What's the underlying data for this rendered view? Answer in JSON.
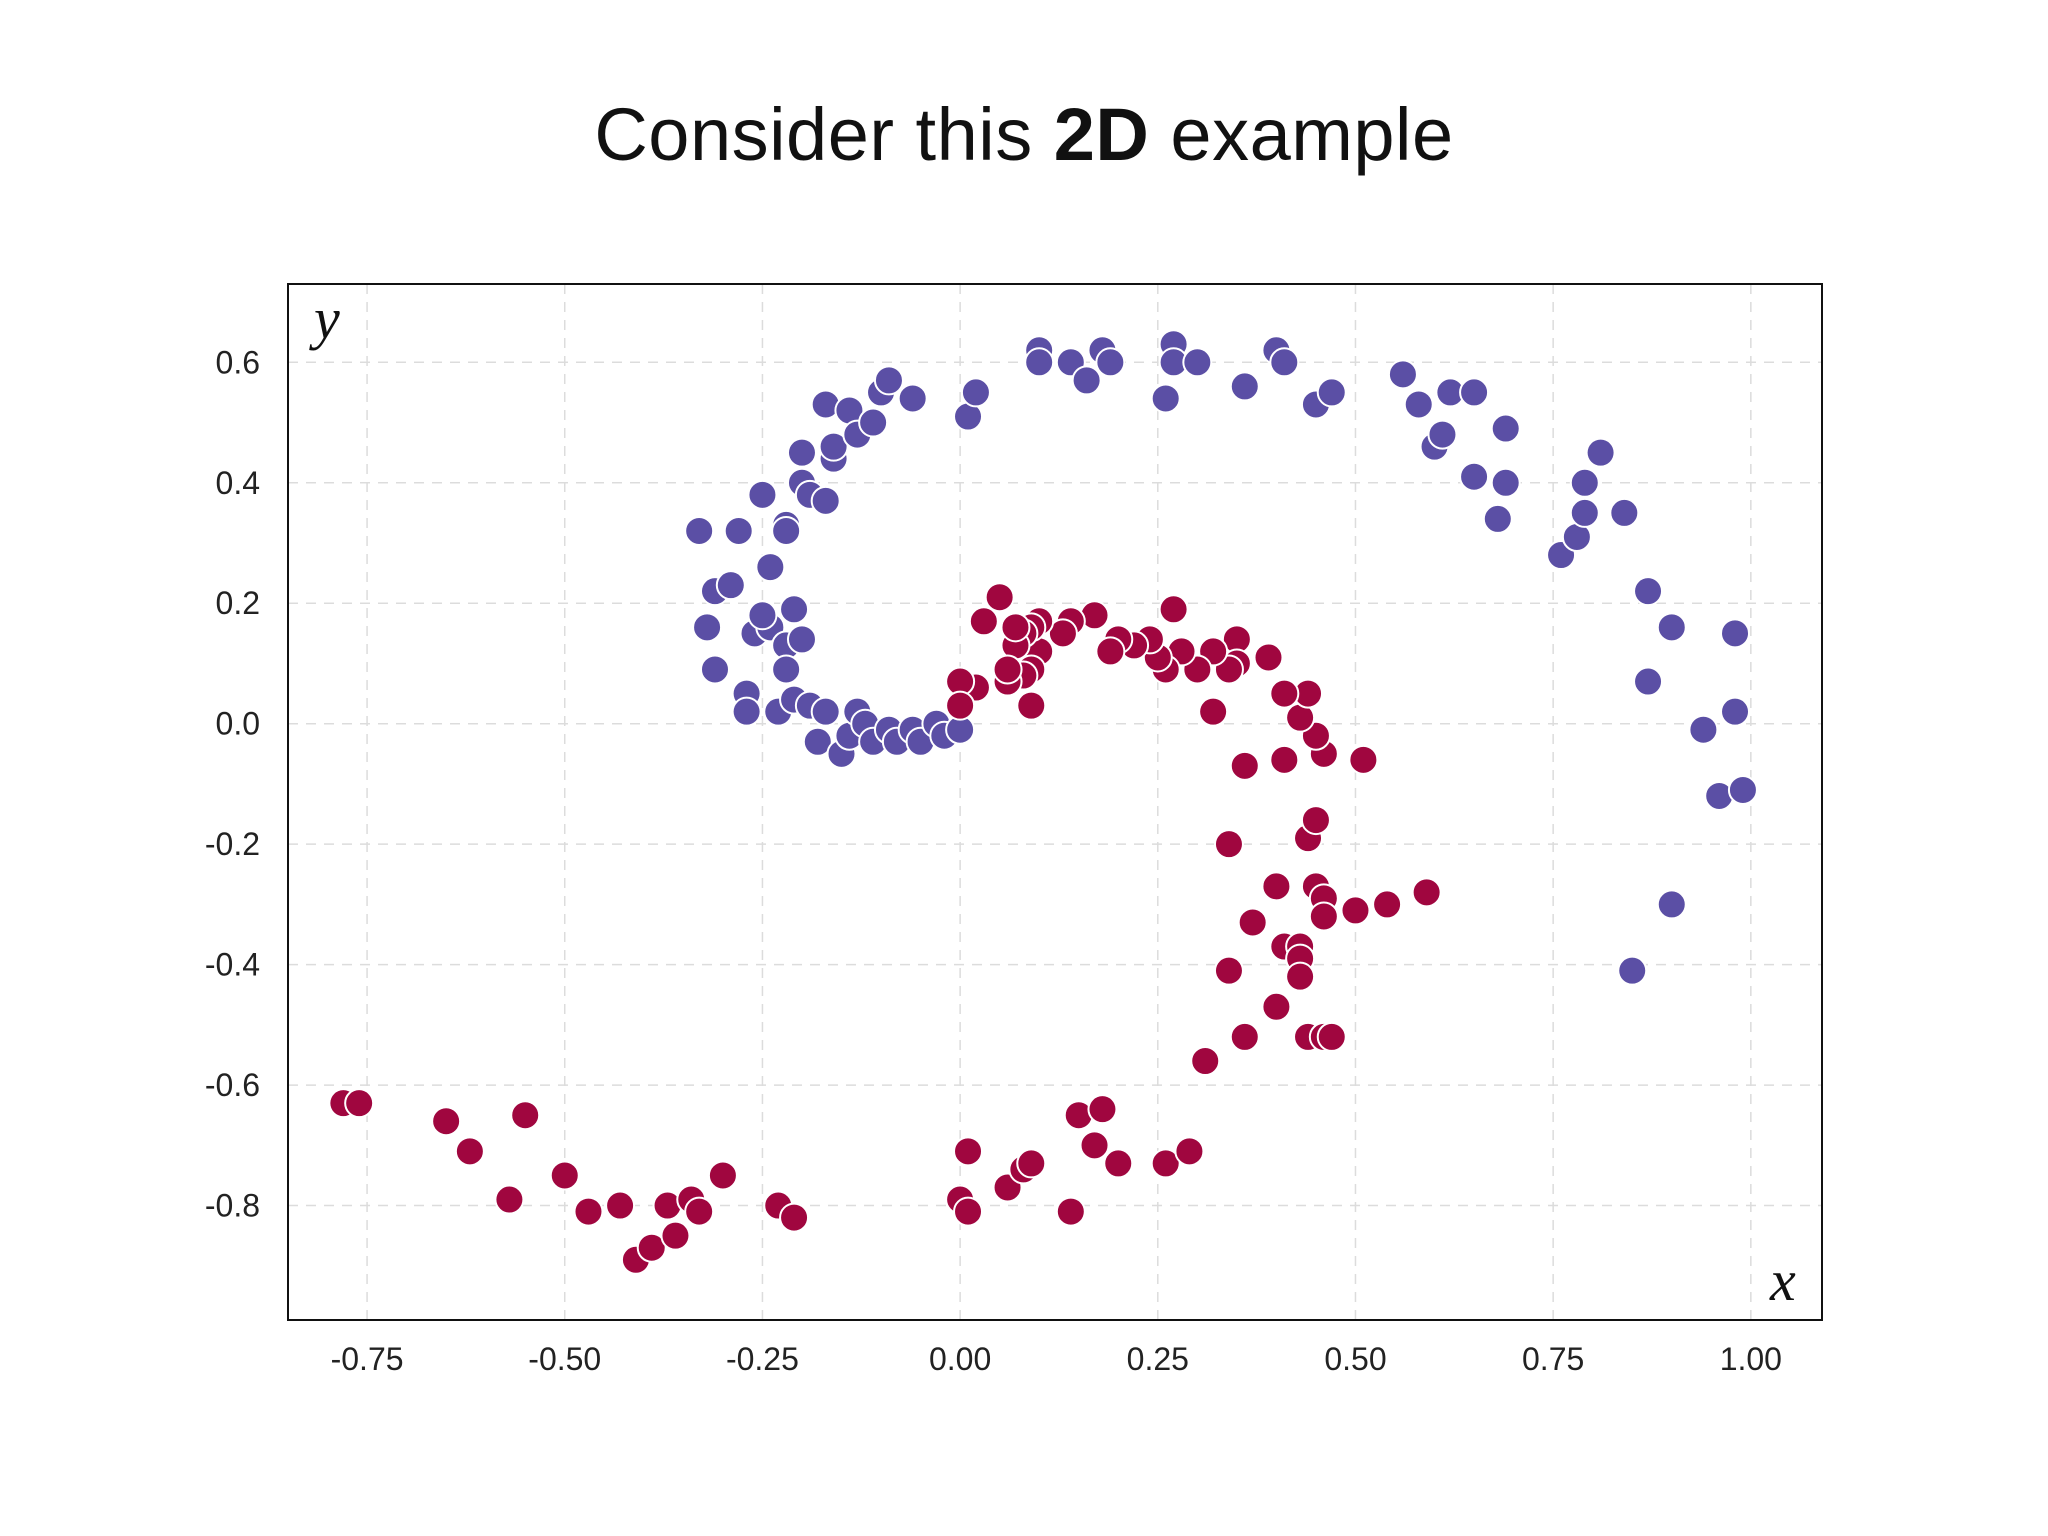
{
  "title": {
    "pre": "Consider this ",
    "bold": "2D",
    "post": " example"
  },
  "colors": {
    "class_a": "#5b4fa5",
    "class_b": "#a0063f",
    "grid": "#dcdcdc",
    "frame": "#111111"
  },
  "chart_data": {
    "type": "scatter",
    "xlabel": "x",
    "ylabel": "y",
    "xlim": [
      -0.85,
      1.09
    ],
    "ylim": [
      -0.99,
      0.73
    ],
    "grid": true,
    "xticks": [
      -0.75,
      -0.5,
      -0.25,
      0.0,
      0.25,
      0.5,
      0.75,
      1.0
    ],
    "xtick_labels": [
      "-0.75",
      "-0.50",
      "-0.25",
      "0.00",
      "0.25",
      "0.50",
      "0.75",
      "1.00"
    ],
    "yticks": [
      0.6,
      0.4,
      0.2,
      0.0,
      -0.2,
      -0.4,
      -0.6,
      -0.8
    ],
    "ytick_labels": [
      "0.6",
      "0.4",
      "0.2",
      "0.0",
      "-0.2",
      "-0.4",
      "-0.6",
      "-0.8"
    ],
    "series": [
      {
        "color": "#5b4fa5",
        "points": [
          [
            -0.33,
            0.32
          ],
          [
            -0.28,
            0.32
          ],
          [
            -0.31,
            0.22
          ],
          [
            -0.29,
            0.23
          ],
          [
            -0.32,
            0.16
          ],
          [
            -0.31,
            0.09
          ],
          [
            -0.27,
            0.05
          ],
          [
            -0.27,
            0.02
          ],
          [
            -0.23,
            0.02
          ],
          [
            -0.26,
            0.15
          ],
          [
            -0.24,
            0.16
          ],
          [
            -0.25,
            0.18
          ],
          [
            -0.21,
            0.19
          ],
          [
            -0.22,
            0.13
          ],
          [
            -0.2,
            0.14
          ],
          [
            -0.22,
            0.09
          ],
          [
            -0.21,
            0.04
          ],
          [
            -0.19,
            0.03
          ],
          [
            -0.18,
            -0.03
          ],
          [
            -0.17,
            0.02
          ],
          [
            -0.15,
            -0.05
          ],
          [
            -0.14,
            -0.02
          ],
          [
            -0.13,
            0.02
          ],
          [
            -0.12,
            0.0
          ],
          [
            -0.11,
            -0.03
          ],
          [
            -0.09,
            -0.01
          ],
          [
            -0.08,
            -0.03
          ],
          [
            -0.06,
            -0.01
          ],
          [
            -0.05,
            -0.03
          ],
          [
            -0.03,
            0.0
          ],
          [
            -0.02,
            -0.02
          ],
          [
            0.0,
            -0.01
          ],
          [
            -0.24,
            0.26
          ],
          [
            -0.22,
            0.33
          ],
          [
            -0.22,
            0.32
          ],
          [
            -0.25,
            0.38
          ],
          [
            -0.2,
            0.4
          ],
          [
            -0.19,
            0.38
          ],
          [
            -0.17,
            0.37
          ],
          [
            -0.2,
            0.45
          ],
          [
            -0.16,
            0.44
          ],
          [
            -0.16,
            0.46
          ],
          [
            -0.17,
            0.53
          ],
          [
            -0.14,
            0.52
          ],
          [
            -0.13,
            0.48
          ],
          [
            -0.11,
            0.5
          ],
          [
            -0.1,
            0.55
          ],
          [
            -0.09,
            0.57
          ],
          [
            -0.06,
            0.54
          ],
          [
            0.01,
            0.51
          ],
          [
            0.02,
            0.55
          ],
          [
            0.1,
            0.62
          ],
          [
            0.1,
            0.6
          ],
          [
            0.14,
            0.6
          ],
          [
            0.16,
            0.57
          ],
          [
            0.18,
            0.62
          ],
          [
            0.19,
            0.6
          ],
          [
            0.27,
            0.63
          ],
          [
            0.27,
            0.6
          ],
          [
            0.3,
            0.6
          ],
          [
            0.26,
            0.54
          ],
          [
            0.36,
            0.56
          ],
          [
            0.4,
            0.62
          ],
          [
            0.41,
            0.6
          ],
          [
            0.45,
            0.53
          ],
          [
            0.47,
            0.55
          ],
          [
            0.56,
            0.58
          ],
          [
            0.58,
            0.53
          ],
          [
            0.6,
            0.46
          ],
          [
            0.61,
            0.48
          ],
          [
            0.62,
            0.55
          ],
          [
            0.65,
            0.55
          ],
          [
            0.65,
            0.41
          ],
          [
            0.68,
            0.34
          ],
          [
            0.69,
            0.49
          ],
          [
            0.69,
            0.4
          ],
          [
            0.76,
            0.28
          ],
          [
            0.78,
            0.31
          ],
          [
            0.79,
            0.35
          ],
          [
            0.79,
            0.4
          ],
          [
            0.81,
            0.45
          ],
          [
            0.84,
            0.35
          ],
          [
            0.87,
            0.22
          ],
          [
            0.9,
            0.16
          ],
          [
            0.87,
            0.07
          ],
          [
            0.94,
            -0.01
          ],
          [
            0.98,
            0.15
          ],
          [
            0.98,
            0.02
          ],
          [
            0.96,
            -0.12
          ],
          [
            0.99,
            -0.11
          ],
          [
            0.9,
            -0.3
          ],
          [
            0.85,
            -0.41
          ]
        ]
      },
      {
        "color": "#a0063f",
        "points": [
          [
            -0.78,
            -0.63
          ],
          [
            -0.76,
            -0.63
          ],
          [
            -0.65,
            -0.66
          ],
          [
            -0.62,
            -0.71
          ],
          [
            -0.57,
            -0.79
          ],
          [
            -0.55,
            -0.65
          ],
          [
            -0.5,
            -0.75
          ],
          [
            -0.47,
            -0.81
          ],
          [
            -0.43,
            -0.8
          ],
          [
            -0.41,
            -0.89
          ],
          [
            -0.39,
            -0.87
          ],
          [
            -0.36,
            -0.85
          ],
          [
            -0.37,
            -0.8
          ],
          [
            -0.34,
            -0.79
          ],
          [
            -0.33,
            -0.81
          ],
          [
            -0.3,
            -0.75
          ],
          [
            -0.23,
            -0.8
          ],
          [
            -0.21,
            -0.82
          ],
          [
            0.01,
            -0.71
          ],
          [
            0.0,
            -0.79
          ],
          [
            0.01,
            -0.81
          ],
          [
            0.06,
            -0.77
          ],
          [
            0.08,
            -0.74
          ],
          [
            0.09,
            -0.73
          ],
          [
            0.14,
            -0.81
          ],
          [
            0.15,
            -0.65
          ],
          [
            0.17,
            -0.7
          ],
          [
            0.18,
            -0.64
          ],
          [
            0.2,
            -0.73
          ],
          [
            0.26,
            -0.73
          ],
          [
            0.29,
            -0.71
          ],
          [
            0.31,
            -0.56
          ],
          [
            0.36,
            -0.52
          ],
          [
            0.37,
            -0.33
          ],
          [
            0.34,
            -0.41
          ],
          [
            0.34,
            -0.2
          ],
          [
            0.4,
            -0.47
          ],
          [
            0.4,
            -0.27
          ],
          [
            0.41,
            -0.37
          ],
          [
            0.43,
            -0.37
          ],
          [
            0.43,
            -0.39
          ],
          [
            0.43,
            -0.42
          ],
          [
            0.44,
            -0.52
          ],
          [
            0.46,
            -0.52
          ],
          [
            0.47,
            -0.52
          ],
          [
            0.45,
            -0.27
          ],
          [
            0.46,
            -0.29
          ],
          [
            0.46,
            -0.32
          ],
          [
            0.44,
            -0.19
          ],
          [
            0.45,
            -0.16
          ],
          [
            0.5,
            -0.31
          ],
          [
            0.54,
            -0.3
          ],
          [
            0.59,
            -0.28
          ],
          [
            0.51,
            -0.06
          ],
          [
            0.46,
            -0.05
          ],
          [
            0.45,
            -0.02
          ],
          [
            0.43,
            0.01
          ],
          [
            0.44,
            0.05
          ],
          [
            0.41,
            0.05
          ],
          [
            0.41,
            -0.06
          ],
          [
            0.36,
            -0.07
          ],
          [
            0.32,
            0.02
          ],
          [
            0.39,
            0.11
          ],
          [
            0.35,
            0.14
          ],
          [
            0.35,
            0.1
          ],
          [
            0.34,
            0.09
          ],
          [
            0.32,
            0.12
          ],
          [
            0.3,
            0.09
          ],
          [
            0.28,
            0.12
          ],
          [
            0.26,
            0.09
          ],
          [
            0.27,
            0.19
          ],
          [
            0.25,
            0.11
          ],
          [
            0.24,
            0.14
          ],
          [
            0.22,
            0.13
          ],
          [
            0.2,
            0.14
          ],
          [
            0.19,
            0.12
          ],
          [
            0.17,
            0.18
          ],
          [
            0.14,
            0.17
          ],
          [
            0.13,
            0.15
          ],
          [
            0.1,
            0.17
          ],
          [
            0.1,
            0.12
          ],
          [
            0.09,
            0.16
          ],
          [
            0.08,
            0.15
          ],
          [
            0.07,
            0.13
          ],
          [
            0.07,
            0.16
          ],
          [
            0.09,
            0.09
          ],
          [
            0.08,
            0.08
          ],
          [
            0.06,
            0.07
          ],
          [
            0.06,
            0.09
          ],
          [
            0.05,
            0.21
          ],
          [
            0.03,
            0.17
          ],
          [
            0.02,
            0.06
          ],
          [
            0.0,
            0.07
          ],
          [
            0.0,
            0.03
          ],
          [
            0.09,
            0.03
          ]
        ]
      }
    ]
  }
}
